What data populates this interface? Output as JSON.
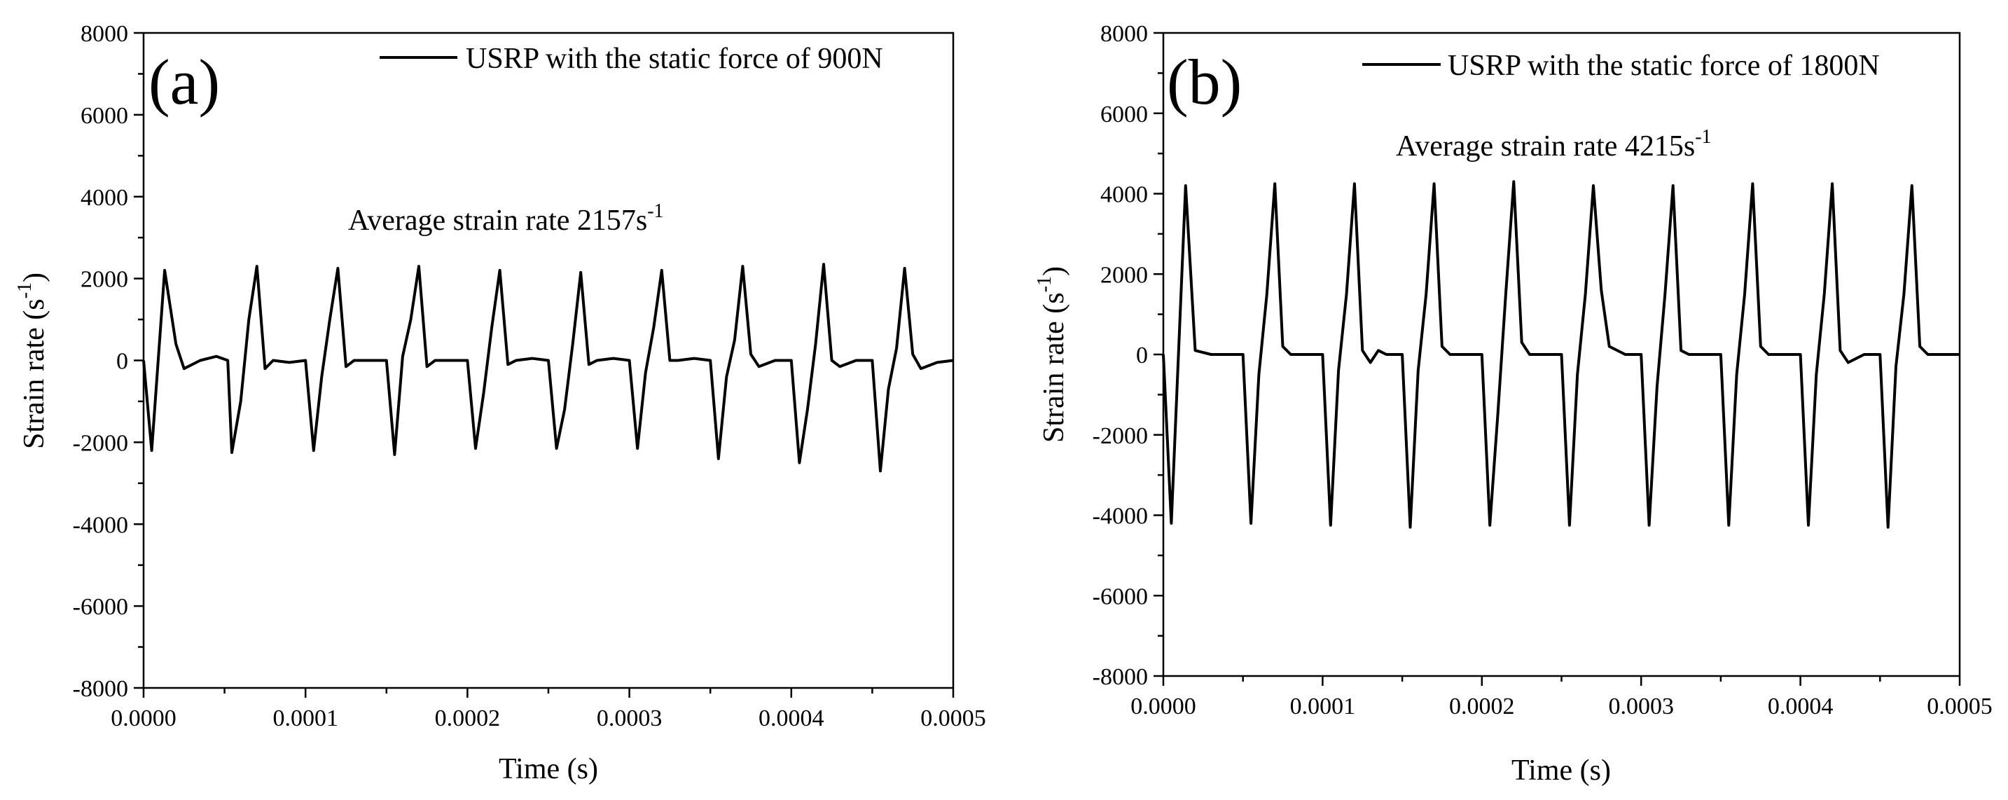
{
  "chart_data": [
    {
      "type": "line",
      "panel_label": "(a)",
      "legend": "USRP with the static force of 900N",
      "annotation_text": "Average strain rate 2157s",
      "annotation_sup": "-1",
      "xlabel": "Time (s)",
      "ylabel_text": "Strain rate (s",
      "ylabel_sup": "-1",
      "ylabel_close": ")",
      "xlim": [
        0,
        0.0005
      ],
      "ylim": [
        -8000,
        8000
      ],
      "x_ticks": [
        0,
        0.0001,
        0.0002,
        0.0003,
        0.0004,
        0.0005
      ],
      "x_tick_labels": [
        "0.0000",
        "0.0001",
        "0.0002",
        "0.0003",
        "0.0004",
        "0.0005"
      ],
      "y_ticks": [
        -8000,
        -6000,
        -4000,
        -2000,
        0,
        2000,
        4000,
        6000,
        8000
      ],
      "y_tick_labels": [
        "-8000",
        "-6000",
        "-4000",
        "-2000",
        "0",
        "2000",
        "4000",
        "6000",
        "8000"
      ],
      "series": [
        {
          "name": "USRP with the static force of 900N",
          "x": [
            0,
            5e-06,
            1.3e-05,
            2e-05,
            2.5e-05,
            3.5e-05,
            4.5e-05,
            5.2e-05,
            5.45e-05,
            6e-05,
            6.5e-05,
            7e-05,
            7.5e-05,
            8e-05,
            9e-05,
            0.0001,
            0.000105,
            0.00011,
            0.000115,
            0.00012,
            0.000125,
            0.00013,
            0.00014,
            0.00015,
            0.000155,
            0.00016,
            0.000165,
            0.00017,
            0.000175,
            0.00018,
            0.00019,
            0.0002,
            0.000205,
            0.00021,
            0.000215,
            0.00022,
            0.000225,
            0.00023,
            0.00024,
            0.00025,
            0.000255,
            0.00026,
            0.000265,
            0.00027,
            0.000275,
            0.00028,
            0.00029,
            0.0003,
            0.000305,
            0.00031,
            0.000315,
            0.00032,
            0.000325,
            0.00033,
            0.00034,
            0.00035,
            0.000355,
            0.00036,
            0.000365,
            0.00037,
            0.000375,
            0.00038,
            0.00039,
            0.0004,
            0.000405,
            0.00041,
            0.000415,
            0.00042,
            0.000425,
            0.00043,
            0.00044,
            0.00045,
            0.000455,
            0.00046,
            0.000465,
            0.00047,
            0.000475,
            0.00048,
            0.00049,
            0.0005
          ],
          "y": [
            0,
            -2200,
            2200,
            400,
            -200,
            0,
            100,
            0,
            -2250,
            -1000,
            1000,
            2300,
            -200,
            0,
            -50,
            0,
            -2200,
            -400,
            1000,
            2250,
            -150,
            0,
            0,
            0,
            -2300,
            100,
            1000,
            2300,
            -150,
            0,
            0,
            0,
            -2150,
            -800,
            800,
            2200,
            -100,
            0,
            50,
            0,
            -2150,
            -1200,
            400,
            2150,
            -100,
            0,
            50,
            0,
            -2150,
            -300,
            800,
            2200,
            0,
            0,
            50,
            0,
            -2400,
            -400,
            500,
            2300,
            150,
            -150,
            0,
            0,
            -2500,
            -1200,
            400,
            2350,
            0,
            -150,
            0,
            0,
            -2700,
            -700,
            300,
            2250,
            150,
            -200,
            -50,
            0
          ]
        }
      ]
    },
    {
      "type": "line",
      "panel_label": "(b)",
      "legend": "USRP with the static force of 1800N",
      "annotation_text": "Average strain rate 4215s",
      "annotation_sup": "-1",
      "xlabel": "Time (s)",
      "ylabel_text": "Strain rate (s",
      "ylabel_sup": "-1",
      "ylabel_close": ")",
      "xlim": [
        0,
        0.0005
      ],
      "ylim": [
        -8000,
        8000
      ],
      "x_ticks": [
        0,
        0.0001,
        0.0002,
        0.0003,
        0.0004,
        0.0005
      ],
      "x_tick_labels": [
        "0.0000",
        "0.0001",
        "0.0002",
        "0.0003",
        "0.0004",
        "0.0005"
      ],
      "y_ticks": [
        -8000,
        -6000,
        -4000,
        -2000,
        0,
        2000,
        4000,
        6000,
        8000
      ],
      "y_tick_labels": [
        "-8000",
        "-6000",
        "-4000",
        "-2000",
        "0",
        "2000",
        "4000",
        "6000",
        "8000"
      ],
      "series": [
        {
          "name": "USRP with the static force of 1800N",
          "x": [
            0,
            5e-06,
            1.4e-05,
            2e-05,
            3e-05,
            4e-05,
            5e-05,
            5.5e-05,
            6e-05,
            6.5e-05,
            7e-05,
            7.5e-05,
            8e-05,
            9e-05,
            0.0001,
            0.000105,
            0.00011,
            0.000115,
            0.00012,
            0.000125,
            0.00013,
            0.000135,
            0.00014,
            0.00015,
            0.000155,
            0.00016,
            0.000165,
            0.00017,
            0.000175,
            0.00018,
            0.00019,
            0.0002,
            0.000205,
            0.00021,
            0.000215,
            0.00022,
            0.000225,
            0.00023,
            0.00024,
            0.00025,
            0.000255,
            0.00026,
            0.000265,
            0.00027,
            0.000275,
            0.00028,
            0.00029,
            0.0003,
            0.000305,
            0.00031,
            0.000315,
            0.00032,
            0.000325,
            0.00033,
            0.00034,
            0.00035,
            0.000355,
            0.00036,
            0.000365,
            0.00037,
            0.000375,
            0.00038,
            0.00039,
            0.0004,
            0.000405,
            0.00041,
            0.000415,
            0.00042,
            0.000425,
            0.00043,
            0.00044,
            0.00045,
            0.000455,
            0.00046,
            0.000465,
            0.00047,
            0.000475,
            0.00048,
            0.00049,
            0.0005
          ],
          "y": [
            0,
            -4200,
            4200,
            100,
            0,
            0,
            0,
            -4200,
            -500,
            1500,
            4250,
            200,
            0,
            0,
            0,
            -4250,
            -400,
            1500,
            4250,
            100,
            -200,
            100,
            0,
            0,
            -4300,
            -400,
            1500,
            4250,
            200,
            0,
            0,
            0,
            -4250,
            -1500,
            1500,
            4300,
            300,
            0,
            0,
            0,
            -4250,
            -500,
            1500,
            4200,
            1600,
            200,
            0,
            0,
            -4250,
            -800,
            1500,
            4200,
            100,
            0,
            0,
            0,
            -4250,
            -500,
            1500,
            4250,
            200,
            0,
            0,
            0,
            -4250,
            -500,
            1500,
            4250,
            100,
            -200,
            0,
            0,
            -4300,
            -300,
            1500,
            4200,
            200,
            0,
            0,
            0
          ]
        }
      ]
    }
  ]
}
